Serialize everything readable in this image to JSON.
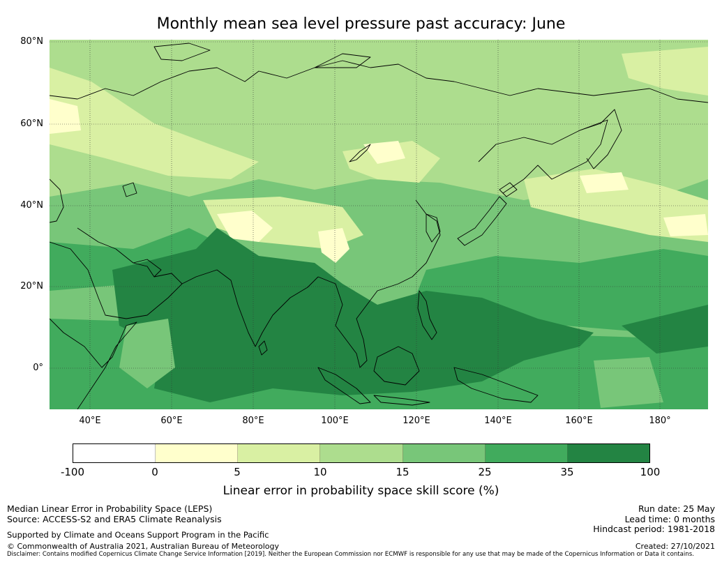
{
  "title": "Monthly mean sea level pressure past accuracy: June",
  "map": {
    "lat_labels": [
      "80°N",
      "60°N",
      "40°N",
      "20°N",
      "0°"
    ],
    "lon_labels": [
      "40°E",
      "60°E",
      "80°E",
      "100°E",
      "120°E",
      "140°E",
      "160°E",
      "180°"
    ],
    "colors": {
      "level_0": "#ffffff",
      "level_1": "#ffffcc",
      "level_2": "#d9f0a3",
      "level_3": "#addd8e",
      "level_4": "#78c679",
      "level_5": "#41ab5d",
      "level_6": "#238443",
      "coastline": "#000000",
      "gridline": "#333333"
    }
  },
  "colorbar": {
    "ticks": [
      "-100",
      "0",
      "5",
      "10",
      "15",
      "25",
      "35",
      "100"
    ],
    "colors": [
      "#ffffff",
      "#ffffcc",
      "#d9f0a3",
      "#addd8e",
      "#78c679",
      "#41ab5d",
      "#238443"
    ],
    "label": "Linear error in probability space skill score (%)"
  },
  "footer": {
    "method": "Median Linear Error in Probability Space (LEPS)",
    "source": "Source: ACCESS-S2 and ERA5 Climate Reanalysis",
    "support": "Supported by Climate and Oceans Support Program in the Pacific",
    "copyright": "© Commonwealth of Australia 2021, Australian Bureau of Meteorology",
    "disclaimer": "Disclaimer: Contains modified Copernicus Climate Change Service Information [2019]. Neither the European Commission nor ECMWF is responsible for any use that may be made of the Copernicus Information or Data it contains.",
    "run_date": "Run date: 25 May",
    "lead_time": "Lead time: 0 months",
    "hindcast": "Hindcast period: 1981-2018",
    "created": "Created: 27/10/2021"
  }
}
